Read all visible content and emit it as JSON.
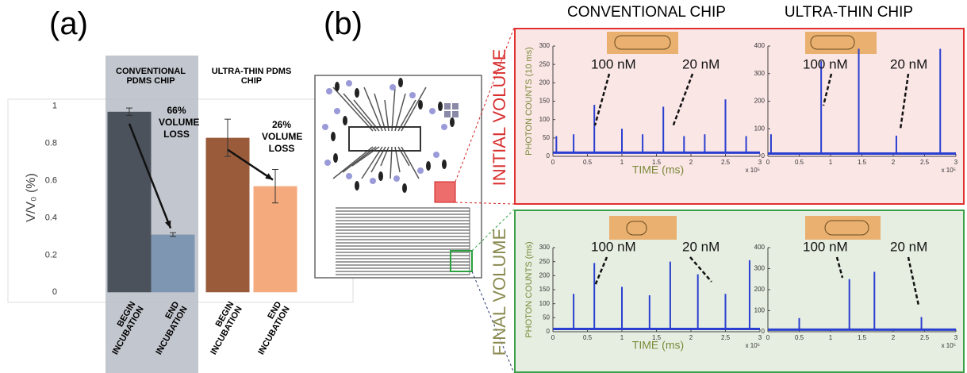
{
  "panel_labels": [
    "(a)",
    "(b)"
  ],
  "column_headers": [
    "CONVENTIONAL CHIP",
    "ULTRA-THIN CHIP"
  ],
  "row_labels": [
    "INITIAL VOLUME",
    "FINAL VOLUME"
  ],
  "chart_data": [
    {
      "type": "bar",
      "y_label": "V/V₀ (%)",
      "categories": [
        "BEGIN INCUBATION",
        "END INCUBATION",
        "BEGIN INCUBATION",
        "END INCUBATION"
      ],
      "values": [
        0.97,
        0.31,
        0.83,
        0.57
      ],
      "errors": [
        0.02,
        0.01,
        0.1,
        0.09
      ],
      "colors": [
        "#4b525c",
        "#7f96b2",
        "#9a5b3b",
        "#f4aa7c"
      ],
      "group_labels": [
        "CONVENTIONAL PDMS CHIP",
        "ULTRA-THIN PDMS CHIP"
      ],
      "annotations": [
        "66% VOLUME LOSS",
        "26% VOLUME LOSS"
      ],
      "ylim": [
        -0.05,
        1.08
      ],
      "yticks": [
        0,
        0.2,
        0.4,
        0.6,
        0.8,
        1
      ]
    },
    {
      "type": "spike",
      "y_label": "PHOTON COUNTS (10 ms)",
      "x_label": "TIME (ms)",
      "x_multiplier": "x 10⁵",
      "annotations": [
        "100 nM",
        "20 nM"
      ],
      "color": "#2a3fd0",
      "baseline": 10,
      "x": [
        0.05,
        0.3,
        0.6,
        1.0,
        1.3,
        1.6,
        1.9,
        2.2,
        2.5,
        2.8
      ],
      "values": [
        55,
        60,
        140,
        75,
        60,
        135,
        55,
        60,
        155,
        55
      ],
      "xlim": [
        0,
        3
      ],
      "xticks": [
        0,
        0.5,
        1,
        1.5,
        2,
        2.5,
        3
      ],
      "ylim": [
        0,
        300
      ],
      "yticks": [
        0,
        50,
        100,
        150,
        200,
        250,
        300
      ]
    },
    {
      "type": "spike",
      "x_multiplier": "x 10⁵",
      "annotations": [
        "100 nM",
        "20 nM"
      ],
      "color": "#2a3fd0",
      "baseline": 10,
      "x": [
        0.05,
        0.85,
        1.45,
        2.05,
        2.75
      ],
      "values": [
        80,
        345,
        390,
        75,
        390
      ],
      "xlim": [
        0,
        3
      ],
      "xticks": [
        0,
        0.5,
        1,
        1.5,
        2,
        2.5,
        3
      ],
      "ylim": [
        0,
        400
      ],
      "yticks": [
        0,
        100,
        200,
        300,
        400
      ]
    },
    {
      "type": "spike",
      "y_label": "PHOTON COUNTS (ms)",
      "x_label": "TIME (ms)",
      "x_multiplier": "x 10⁵",
      "annotations": [
        "100 nM",
        "20 nM"
      ],
      "color": "#2a3fd0",
      "baseline": 10,
      "x": [
        0.3,
        0.6,
        1.0,
        1.4,
        1.7,
        2.1,
        2.5,
        2.85
      ],
      "values": [
        135,
        245,
        160,
        130,
        250,
        205,
        135,
        255
      ],
      "xlim": [
        0,
        3
      ],
      "xticks": [
        0,
        0.5,
        1,
        1.5,
        2,
        2.5,
        3
      ],
      "ylim": [
        0,
        300
      ],
      "yticks": [
        0,
        50,
        100,
        150,
        200,
        250,
        300
      ]
    },
    {
      "type": "spike",
      "x_multiplier": "x 10⁵",
      "annotations": [
        "100 nM",
        "20 nM"
      ],
      "color": "#2a3fd0",
      "baseline": 10,
      "x": [
        0.5,
        1.3,
        1.7,
        2.45
      ],
      "values": [
        65,
        250,
        285,
        70
      ],
      "xlim": [
        0,
        3
      ],
      "xticks": [
        0,
        0.5,
        1,
        1.5,
        2,
        2.5,
        3
      ],
      "ylim": [
        0,
        400
      ],
      "yticks": [
        0,
        100,
        200,
        300,
        400
      ]
    }
  ]
}
